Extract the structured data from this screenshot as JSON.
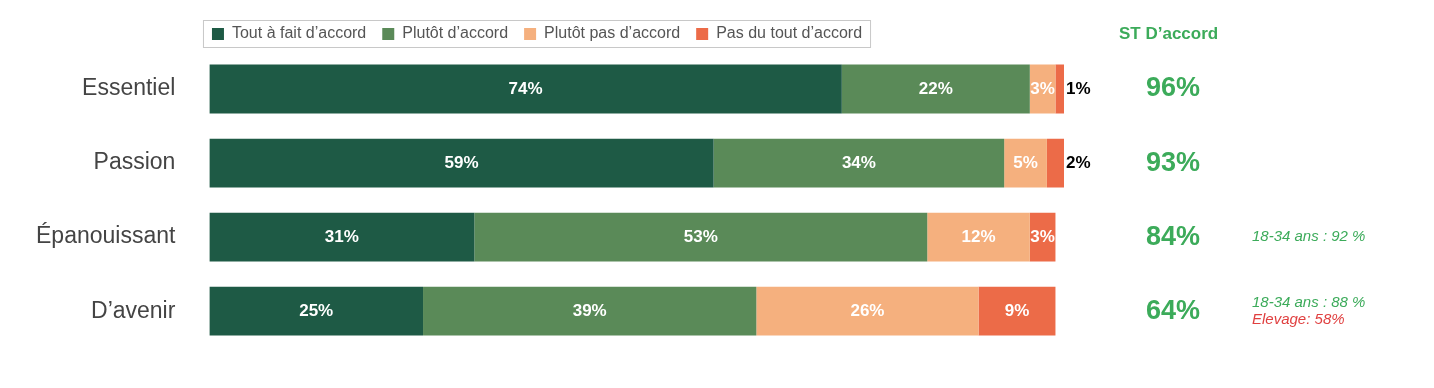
{
  "chart_data": {
    "type": "bar",
    "orientation": "horizontal",
    "stacked": true,
    "data_labels": true,
    "grid": false,
    "legend": "top",
    "tick_labels": "y",
    "xlim": [
      0,
      100
    ],
    "categories": [
      "Essentiel",
      "Passion",
      "Épanouissant",
      "D’avenir"
    ],
    "series": [
      {
        "name": "Tout à fait d’accord",
        "color": "#1e5a45",
        "values": [
          74,
          59,
          31,
          25
        ],
        "value_labels": [
          "74%",
          "59%",
          "31%",
          "25%"
        ]
      },
      {
        "name": "Plutôt d’accord",
        "color": "#5a8a58",
        "values": [
          22,
          34,
          53,
          39
        ],
        "value_labels": [
          "22%",
          "34%",
          "53%",
          "39%"
        ]
      },
      {
        "name": "Plutôt pas d’accord",
        "color": "#f5b07e",
        "values": [
          3,
          5,
          12,
          26
        ],
        "value_labels": [
          "3%",
          "5%",
          "12%",
          "26%"
        ]
      },
      {
        "name": "Pas du tout d’accord",
        "color": "#ec6b48",
        "values": [
          1,
          2,
          3,
          9
        ],
        "value_labels": [
          "1%",
          "2%",
          "3%",
          "9%"
        ]
      }
    ],
    "totals": {
      "title": "ST D’accord",
      "color": "#3cab5a",
      "values": [
        96,
        93,
        84,
        64
      ],
      "value_labels": [
        "96%",
        "93%",
        "84%",
        "64%"
      ]
    },
    "annotations": [
      {
        "category": "Épanouissant",
        "text": "18-34 ans : 92 %",
        "color": "#3cab5a"
      },
      {
        "category": "D’avenir",
        "text": "18-34 ans : 88 %",
        "color": "#3cab5a"
      },
      {
        "category": "D’avenir",
        "text": "Elevage: 58%",
        "color": "#e04040"
      }
    ]
  }
}
